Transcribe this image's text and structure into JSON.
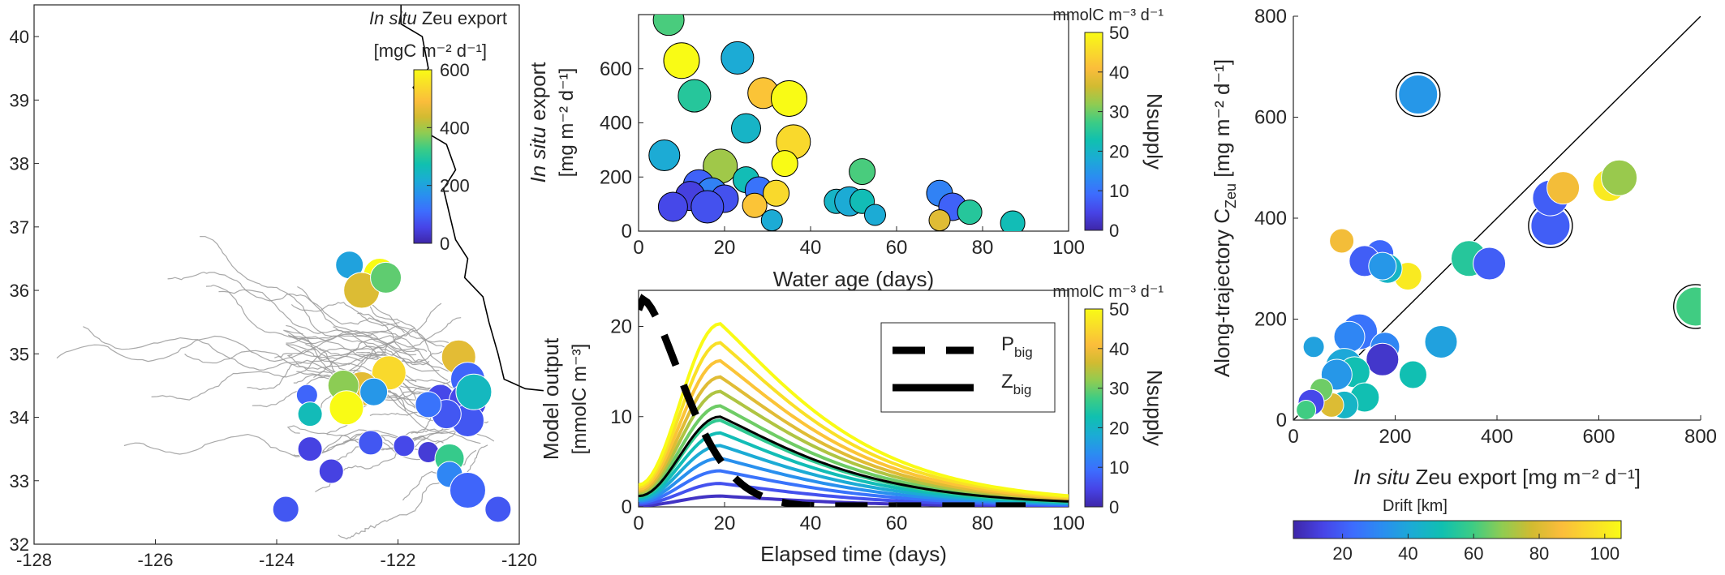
{
  "colors": {
    "parula": [
      "#3e26a8",
      "#4744e7",
      "#3d6cfe",
      "#2a8ef0",
      "#1bacd4",
      "#10c0b0",
      "#3ccc85",
      "#8fcc52",
      "#d1bb31",
      "#fbbd3b",
      "#f9dc2a",
      "#f9fb15"
    ],
    "trajectory": "#9a9a9a",
    "coast": "#000000",
    "axis": "#262626"
  },
  "map_panel": {
    "cbar_title_italic": "In situ",
    "cbar_title_rest": " Zeu export",
    "cbar_units": "[mgC m⁻² d⁻¹]",
    "cbar_ticks": [
      "0",
      "200",
      "400",
      "600"
    ]
  },
  "chart_data": [
    {
      "id": "map",
      "type": "scatter",
      "description_axes": "longitude vs latitude",
      "xlim": [
        -128,
        -120
      ],
      "ylim": [
        32,
        40.5
      ],
      "xticks": [
        "-128",
        "-126",
        "-124",
        "-122",
        "-120"
      ],
      "yticks": [
        "32",
        "33",
        "34",
        "35",
        "36",
        "37",
        "38",
        "39",
        "40"
      ],
      "clim": [
        0,
        600
      ],
      "points": [
        {
          "lon": -122.8,
          "lat": 36.4,
          "export": 200,
          "size": 26
        },
        {
          "lon": -122.3,
          "lat": 36.25,
          "export": 600,
          "size": 32
        },
        {
          "lon": -122.6,
          "lat": 36.0,
          "export": 450,
          "size": 36
        },
        {
          "lon": -122.2,
          "lat": 36.2,
          "export": 350,
          "size": 30
        },
        {
          "lon": -121.0,
          "lat": 34.95,
          "export": 460,
          "size": 34
        },
        {
          "lon": -122.15,
          "lat": 34.7,
          "export": 540,
          "size": 34
        },
        {
          "lon": -122.6,
          "lat": 34.45,
          "export": 460,
          "size": 34
        },
        {
          "lon": -122.9,
          "lat": 34.5,
          "export": 380,
          "size": 30
        },
        {
          "lon": -122.4,
          "lat": 34.4,
          "export": 180,
          "size": 26
        },
        {
          "lon": -122.85,
          "lat": 34.15,
          "export": 600,
          "size": 34
        },
        {
          "lon": -123.5,
          "lat": 34.35,
          "export": 100,
          "size": 18
        },
        {
          "lon": -123.45,
          "lat": 34.05,
          "export": 260,
          "size": 22
        },
        {
          "lon": -121.3,
          "lat": 34.3,
          "export": 60,
          "size": 26
        },
        {
          "lon": -120.85,
          "lat": 34.6,
          "export": 100,
          "size": 34
        },
        {
          "lon": -120.85,
          "lat": 34.25,
          "export": 60,
          "size": 38
        },
        {
          "lon": -120.85,
          "lat": 33.95,
          "export": 80,
          "size": 32
        },
        {
          "lon": -121.2,
          "lat": 34.05,
          "export": 80,
          "size": 28
        },
        {
          "lon": -121.5,
          "lat": 34.2,
          "export": 120,
          "size": 24
        },
        {
          "lon": -120.75,
          "lat": 34.4,
          "export": 250,
          "size": 36
        },
        {
          "lon": -123.45,
          "lat": 33.5,
          "export": 50,
          "size": 22
        },
        {
          "lon": -122.45,
          "lat": 33.6,
          "export": 80,
          "size": 22
        },
        {
          "lon": -121.9,
          "lat": 33.55,
          "export": 60,
          "size": 18
        },
        {
          "lon": -121.5,
          "lat": 33.45,
          "export": 40,
          "size": 18
        },
        {
          "lon": -121.15,
          "lat": 33.35,
          "export": 320,
          "size": 28
        },
        {
          "lon": -121.15,
          "lat": 33.1,
          "export": 150,
          "size": 24
        },
        {
          "lon": -123.1,
          "lat": 33.15,
          "export": 50,
          "size": 22
        },
        {
          "lon": -120.85,
          "lat": 32.85,
          "export": 100,
          "size": 36
        },
        {
          "lon": -120.35,
          "lat": 32.55,
          "export": 80,
          "size": 24
        },
        {
          "lon": -123.85,
          "lat": 32.55,
          "export": 80,
          "size": 24
        }
      ]
    },
    {
      "id": "water-age",
      "type": "scatter",
      "xlabel": "Water age (days)",
      "ylabel_italic": "In situ",
      "ylabel_rest": " export",
      "ylabel_units": "[mg m⁻² d⁻¹]",
      "xlim": [
        0,
        100
      ],
      "ylim": [
        0,
        800
      ],
      "xticks": [
        "0",
        "20",
        "40",
        "60",
        "80",
        "100"
      ],
      "yticks": [
        "0",
        "200",
        "400",
        "600"
      ],
      "cbar_label": "Nsupply",
      "cbar_units": "mmolC m⁻³ d⁻¹",
      "cbar_ticks": [
        "0",
        "10",
        "20",
        "30",
        "40",
        "50"
      ],
      "clim": [
        0,
        50
      ],
      "points": [
        {
          "x": 7,
          "y": 780,
          "c": 28,
          "s": 30
        },
        {
          "x": 10,
          "y": 630,
          "c": 50,
          "s": 36
        },
        {
          "x": 13,
          "y": 500,
          "c": 25,
          "s": 32
        },
        {
          "x": 23,
          "y": 640,
          "c": 18,
          "s": 32
        },
        {
          "x": 29,
          "y": 510,
          "c": 42,
          "s": 30
        },
        {
          "x": 35,
          "y": 490,
          "c": 50,
          "s": 36
        },
        {
          "x": 36,
          "y": 330,
          "c": 45,
          "s": 34
        },
        {
          "x": 25,
          "y": 380,
          "c": 20,
          "s": 28
        },
        {
          "x": 6,
          "y": 280,
          "c": 18,
          "s": 30
        },
        {
          "x": 19,
          "y": 240,
          "c": 33,
          "s": 34
        },
        {
          "x": 25,
          "y": 190,
          "c": 22,
          "s": 24
        },
        {
          "x": 34,
          "y": 250,
          "c": 50,
          "s": 24
        },
        {
          "x": 14,
          "y": 170,
          "c": 8,
          "s": 30
        },
        {
          "x": 17,
          "y": 140,
          "c": 12,
          "s": 30
        },
        {
          "x": 20,
          "y": 120,
          "c": 6,
          "s": 26
        },
        {
          "x": 12,
          "y": 130,
          "c": 4,
          "s": 28
        },
        {
          "x": 8,
          "y": 90,
          "c": 5,
          "s": 28
        },
        {
          "x": 16,
          "y": 90,
          "c": 6,
          "s": 32
        },
        {
          "x": 28,
          "y": 150,
          "c": 10,
          "s": 26
        },
        {
          "x": 32,
          "y": 140,
          "c": 45,
          "s": 24
        },
        {
          "x": 27,
          "y": 95,
          "c": 42,
          "s": 22
        },
        {
          "x": 31,
          "y": 40,
          "c": 18,
          "s": 18
        },
        {
          "x": 46,
          "y": 110,
          "c": 20,
          "s": 22
        },
        {
          "x": 52,
          "y": 220,
          "c": 28,
          "s": 24
        },
        {
          "x": 49,
          "y": 110,
          "c": 18,
          "s": 28
        },
        {
          "x": 52,
          "y": 110,
          "c": 22,
          "s": 22
        },
        {
          "x": 55,
          "y": 60,
          "c": 18,
          "s": 18
        },
        {
          "x": 70,
          "y": 140,
          "c": 12,
          "s": 24
        },
        {
          "x": 73,
          "y": 90,
          "c": 8,
          "s": 26
        },
        {
          "x": 77,
          "y": 70,
          "c": 25,
          "s": 22
        },
        {
          "x": 70,
          "y": 40,
          "c": 38,
          "s": 18
        },
        {
          "x": 87,
          "y": 30,
          "c": 22,
          "s": 22
        }
      ]
    },
    {
      "id": "model-output",
      "type": "line",
      "xlabel": "Elapsed time (days)",
      "ylabel": "Model output",
      "ylabel_units": "[mmolC m⁻³]",
      "xlim": [
        0,
        100
      ],
      "ylim": [
        0,
        24
      ],
      "xticks": [
        "0",
        "20",
        "40",
        "60",
        "80",
        "100"
      ],
      "yticks": [
        "0",
        "10",
        "20"
      ],
      "cbar_label": "Nsupply",
      "cbar_units": "mmolC m⁻³ d⁻¹",
      "cbar_ticks": [
        "0",
        "10",
        "20",
        "30",
        "40",
        "50"
      ],
      "clim": [
        0,
        50
      ],
      "legend": [
        "P_big",
        "Z_big"
      ],
      "peak_day": 19,
      "zbig_series": [
        {
          "nsupply": 2,
          "peak": 1.2
        },
        {
          "nsupply": 6,
          "peak": 2.6
        },
        {
          "nsupply": 10,
          "peak": 4.0
        },
        {
          "nsupply": 14,
          "peak": 5.4
        },
        {
          "nsupply": 18,
          "peak": 6.8
        },
        {
          "nsupply": 22,
          "peak": 8.2
        },
        {
          "nsupply": 26,
          "peak": 9.6
        },
        {
          "nsupply": 30,
          "peak": 11.2
        },
        {
          "nsupply": 34,
          "peak": 12.8
        },
        {
          "nsupply": 38,
          "peak": 14.4
        },
        {
          "nsupply": 42,
          "peak": 16.2
        },
        {
          "nsupply": 46,
          "peak": 18.2
        },
        {
          "nsupply": 50,
          "peak": 20.3
        }
      ],
      "zbig_black_peak": 10,
      "pbig": {
        "start": 23,
        "peak_day": 1,
        "decay_end": 45
      }
    },
    {
      "id": "along-trajectory",
      "type": "scatter",
      "xlabel_italic": "In situ",
      "xlabel_rest": " Zeu export [mg m⁻² d⁻¹]",
      "ylabel": "Along-trajectory C",
      "ylabel_sub": "Zeu",
      "ylabel_units": " [mg m⁻² d⁻¹]",
      "xlim": [
        0,
        800
      ],
      "ylim": [
        0,
        800
      ],
      "xticks": [
        "0",
        "200",
        "400",
        "600",
        "800"
      ],
      "yticks": [
        "0",
        "200",
        "400",
        "600",
        "800"
      ],
      "cbar_label": "Drift [km]",
      "cbar_ticks": [
        "20",
        "40",
        "60",
        "80",
        "100"
      ],
      "clim": [
        5,
        105
      ],
      "one_to_one": true,
      "points": [
        {
          "x": 245,
          "y": 645,
          "c": 35,
          "s": 40,
          "ring": true
        },
        {
          "x": 505,
          "y": 385,
          "c": 20,
          "s": 40,
          "ring": true
        },
        {
          "x": 790,
          "y": 225,
          "c": 60,
          "s": 40,
          "ring": true
        },
        {
          "x": 505,
          "y": 440,
          "c": 20,
          "s": 36
        },
        {
          "x": 530,
          "y": 460,
          "c": 85,
          "s": 32
        },
        {
          "x": 620,
          "y": 465,
          "c": 100,
          "s": 32
        },
        {
          "x": 640,
          "y": 480,
          "c": 70,
          "s": 36
        },
        {
          "x": 345,
          "y": 320,
          "c": 55,
          "s": 36
        },
        {
          "x": 385,
          "y": 310,
          "c": 20,
          "s": 32
        },
        {
          "x": 225,
          "y": 285,
          "c": 100,
          "s": 26
        },
        {
          "x": 95,
          "y": 355,
          "c": 85,
          "s": 22
        },
        {
          "x": 170,
          "y": 330,
          "c": 22,
          "s": 26
        },
        {
          "x": 140,
          "y": 315,
          "c": 20,
          "s": 30
        },
        {
          "x": 185,
          "y": 300,
          "c": 45,
          "s": 28
        },
        {
          "x": 175,
          "y": 305,
          "c": 35,
          "s": 26
        },
        {
          "x": 290,
          "y": 155,
          "c": 38,
          "s": 32
        },
        {
          "x": 130,
          "y": 175,
          "c": 25,
          "s": 36
        },
        {
          "x": 110,
          "y": 165,
          "c": 30,
          "s": 30
        },
        {
          "x": 180,
          "y": 145,
          "c": 30,
          "s": 28
        },
        {
          "x": 175,
          "y": 120,
          "c": 10,
          "s": 32
        },
        {
          "x": 100,
          "y": 105,
          "c": 40,
          "s": 38
        },
        {
          "x": 120,
          "y": 95,
          "c": 50,
          "s": 30
        },
        {
          "x": 85,
          "y": 90,
          "c": 35,
          "s": 30
        },
        {
          "x": 140,
          "y": 45,
          "c": 50,
          "s": 28
        },
        {
          "x": 235,
          "y": 90,
          "c": 50,
          "s": 26
        },
        {
          "x": 100,
          "y": 30,
          "c": 45,
          "s": 26
        },
        {
          "x": 75,
          "y": 30,
          "c": 80,
          "s": 22
        },
        {
          "x": 40,
          "y": 145,
          "c": 38,
          "s": 18
        },
        {
          "x": 55,
          "y": 60,
          "c": 65,
          "s": 20
        },
        {
          "x": 35,
          "y": 35,
          "c": 15,
          "s": 24
        },
        {
          "x": 25,
          "y": 20,
          "c": 60,
          "s": 16
        }
      ]
    }
  ]
}
